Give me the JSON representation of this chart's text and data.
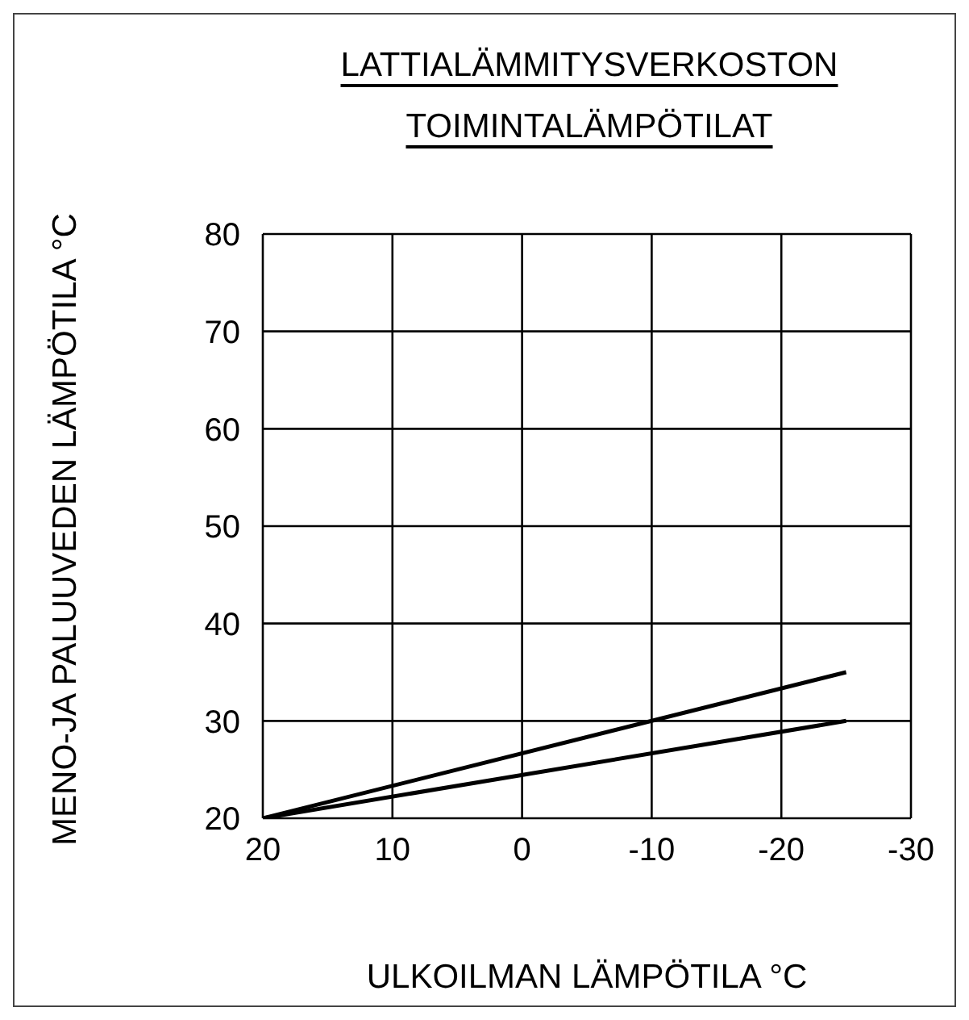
{
  "chart_data": {
    "type": "line",
    "title": "LATTIALÄMMITYSVERKOSTON TOIMINTALÄMPÖTILAT",
    "xlabel": "ULKOILMAN LÄMPÖTILA °C",
    "ylabel": "MENO-JA PALUUVEDEN LÄMPÖTILA °C",
    "x": [
      20,
      -25
    ],
    "series": [
      {
        "color": "#000000",
        "values": [
          20,
          35
        ]
      },
      {
        "color": "#000000",
        "values": [
          20,
          30
        ]
      }
    ],
    "xlim": [
      20,
      -30
    ],
    "xticks": [
      20,
      10,
      0,
      -10,
      -20,
      -30
    ],
    "ylim": [
      20,
      80
    ],
    "yticks": [
      20,
      30,
      40,
      50,
      60,
      70,
      80
    ],
    "grid": true
  }
}
